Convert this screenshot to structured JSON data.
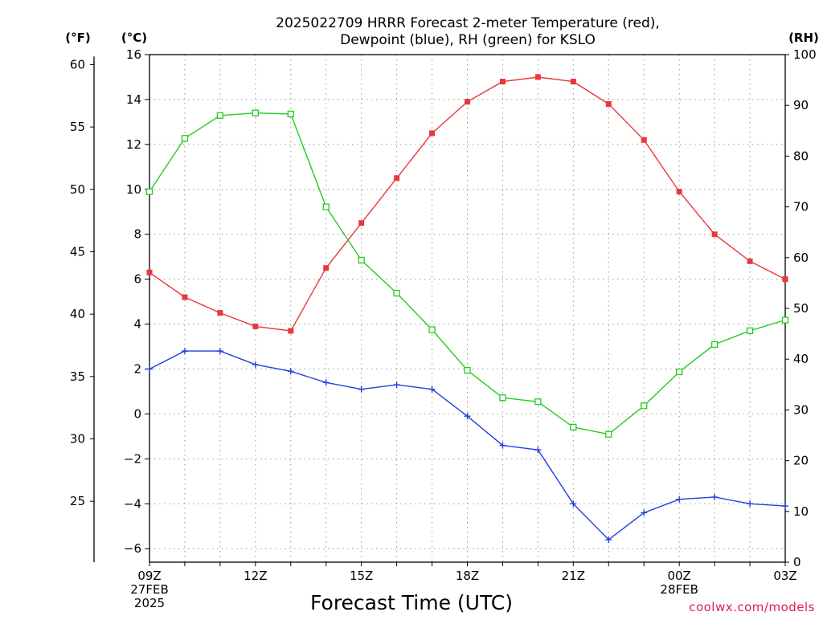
{
  "chart_data": {
    "type": "line",
    "title_line1": "2025022709 HRRR Forecast 2-meter Temperature (red),",
    "title_line2": "Dewpoint (blue), RH (green) for KSLO",
    "xlabel": "Forecast Time (UTC)",
    "units": {
      "fahrenheit": "(°F)",
      "celsius": "(°C)",
      "rh": "(RH)"
    },
    "x": [
      9,
      10,
      11,
      12,
      13,
      14,
      15,
      16,
      17,
      18,
      19,
      20,
      21,
      22,
      23,
      24,
      25,
      26,
      27
    ],
    "x_ticks": [
      {
        "x": 9,
        "lines": [
          "09Z",
          "27FEB",
          "2025"
        ]
      },
      {
        "x": 12,
        "lines": [
          "12Z"
        ]
      },
      {
        "x": 15,
        "lines": [
          "15Z"
        ]
      },
      {
        "x": 18,
        "lines": [
          "18Z"
        ]
      },
      {
        "x": 21,
        "lines": [
          "21Z"
        ]
      },
      {
        "x": 24,
        "lines": [
          "00Z",
          "28FEB"
        ]
      },
      {
        "x": 27,
        "lines": [
          "03Z"
        ]
      }
    ],
    "left_axis_celsius": {
      "ylim": [
        -6.6,
        16
      ],
      "ticks": [
        -6,
        -4,
        -2,
        0,
        2,
        4,
        6,
        8,
        10,
        12,
        14,
        16
      ]
    },
    "far_left_axis_fahrenheit": {
      "ticks": [
        25,
        30,
        35,
        40,
        45,
        50,
        55,
        60
      ]
    },
    "right_axis_rh": {
      "ylim": [
        0,
        100
      ],
      "ticks": [
        0,
        10,
        20,
        30,
        40,
        50,
        60,
        70,
        80,
        90,
        100
      ]
    },
    "grid": true,
    "series": [
      {
        "name": "Temperature",
        "axis": "celsius",
        "color": "#e8383b",
        "marker": "filled-square",
        "values": [
          6.3,
          5.2,
          4.5,
          3.9,
          3.7,
          6.5,
          8.5,
          10.5,
          12.5,
          13.9,
          14.8,
          15.0,
          14.8,
          13.8,
          12.2,
          9.9,
          8.0,
          6.8,
          6.0
        ]
      },
      {
        "name": "Dewpoint",
        "axis": "celsius",
        "color": "#2040e0",
        "marker": "plus",
        "values": [
          2.0,
          2.8,
          2.8,
          2.2,
          1.9,
          1.4,
          1.1,
          1.3,
          1.1,
          -0.1,
          -1.4,
          -1.6,
          -4.0,
          -5.6,
          -4.4,
          -3.8,
          -3.7,
          -4.0,
          -4.1
        ]
      },
      {
        "name": "RH",
        "axis": "rh",
        "color": "#22cc22",
        "marker": "open-square",
        "values": [
          73,
          83.5,
          88,
          88.5,
          88.3,
          70,
          59.5,
          53,
          45.8,
          37.8,
          32.4,
          31.6,
          26.6,
          25.2,
          30.8,
          37.5,
          42.9,
          45.6,
          47.7
        ]
      }
    ],
    "credit": "coolwx.com/models"
  }
}
